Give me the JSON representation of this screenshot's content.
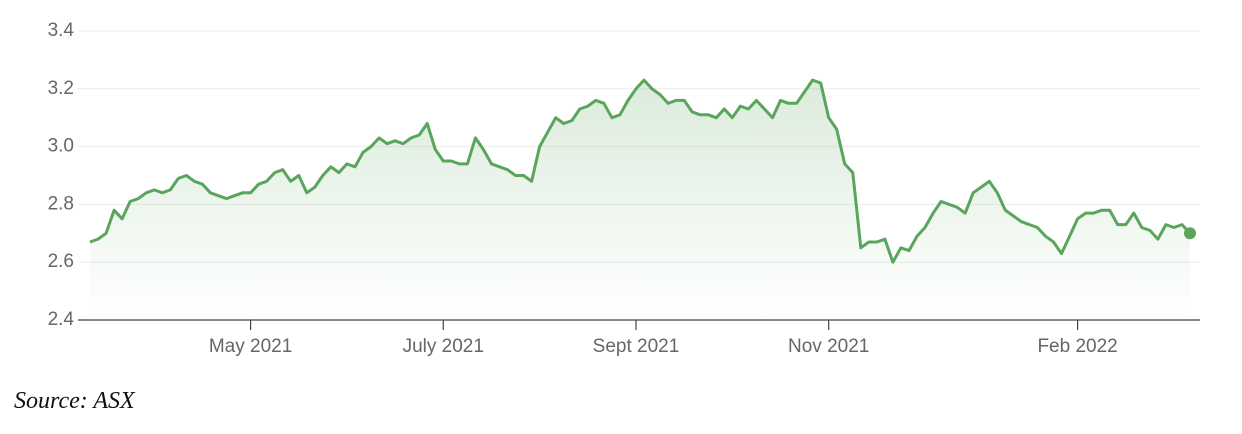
{
  "chart_data": {
    "type": "line",
    "color": "#5aa55c",
    "grid": true,
    "ylim": [
      2.4,
      3.4
    ],
    "yticks": [
      2.4,
      2.6,
      2.8,
      {
        "value": 3,
        "label": "3.0"
      },
      3.2,
      3.4
    ],
    "categories": [
      null,
      null,
      null,
      null,
      null,
      null,
      null,
      null,
      null,
      null,
      null,
      null,
      null,
      null,
      null,
      null,
      null,
      null,
      null,
      null,
      "May 2021",
      null,
      null,
      null,
      null,
      null,
      null,
      null,
      null,
      null,
      null,
      null,
      null,
      null,
      null,
      null,
      null,
      null,
      null,
      null,
      null,
      null,
      null,
      null,
      "July 2021",
      null,
      null,
      null,
      null,
      null,
      null,
      null,
      null,
      null,
      null,
      null,
      null,
      null,
      null,
      null,
      null,
      null,
      null,
      null,
      null,
      null,
      null,
      null,
      "Sept 2021",
      null,
      null,
      null,
      null,
      null,
      null,
      null,
      null,
      null,
      null,
      null,
      null,
      null,
      null,
      null,
      null,
      null,
      null,
      null,
      null,
      null,
      null,
      null,
      "Nov 2021",
      null,
      null,
      null,
      null,
      null,
      null,
      null,
      null,
      null,
      null,
      null,
      null,
      null,
      null,
      null,
      null,
      null,
      null,
      null,
      null,
      null,
      null,
      null,
      null,
      null,
      null,
      null,
      null,
      null,
      null,
      "Feb 2022",
      null,
      null,
      null,
      null,
      null,
      null,
      null,
      null,
      null,
      null,
      null,
      null,
      null,
      null
    ],
    "values": [
      2.67,
      2.68,
      2.7,
      2.78,
      2.75,
      2.81,
      2.82,
      2.84,
      2.85,
      2.84,
      2.85,
      2.89,
      2.9,
      2.88,
      2.87,
      2.84,
      2.83,
      2.82,
      2.83,
      2.84,
      2.84,
      2.87,
      2.88,
      2.91,
      2.92,
      2.88,
      2.9,
      2.84,
      2.86,
      2.9,
      2.93,
      2.91,
      2.94,
      2.93,
      2.98,
      3.0,
      3.03,
      3.01,
      3.02,
      3.01,
      3.03,
      3.04,
      3.08,
      2.99,
      2.95,
      2.95,
      2.94,
      2.94,
      3.03,
      2.99,
      2.94,
      2.93,
      2.92,
      2.9,
      2.9,
      2.88,
      3.0,
      3.05,
      3.1,
      3.08,
      3.09,
      3.13,
      3.14,
      3.16,
      3.15,
      3.1,
      3.11,
      3.16,
      3.2,
      3.23,
      3.2,
      3.18,
      3.15,
      3.16,
      3.16,
      3.12,
      3.11,
      3.11,
      3.1,
      3.13,
      3.1,
      3.14,
      3.13,
      3.16,
      3.13,
      3.1,
      3.16,
      3.15,
      3.15,
      3.19,
      3.23,
      3.22,
      3.1,
      3.06,
      2.94,
      2.91,
      2.65,
      2.67,
      2.67,
      2.68,
      2.6,
      2.65,
      2.64,
      2.69,
      2.72,
      2.77,
      2.81,
      2.8,
      2.79,
      2.77,
      2.84,
      2.86,
      2.88,
      2.84,
      2.78,
      2.76,
      2.74,
      2.73,
      2.72,
      2.69,
      2.67,
      2.63,
      2.69,
      2.75,
      2.77,
      2.77,
      2.78,
      2.78,
      2.73,
      2.73,
      2.77,
      2.72,
      2.71,
      2.68,
      2.73,
      2.72,
      2.73,
      2.7
    ],
    "source": "Source: ASX"
  }
}
